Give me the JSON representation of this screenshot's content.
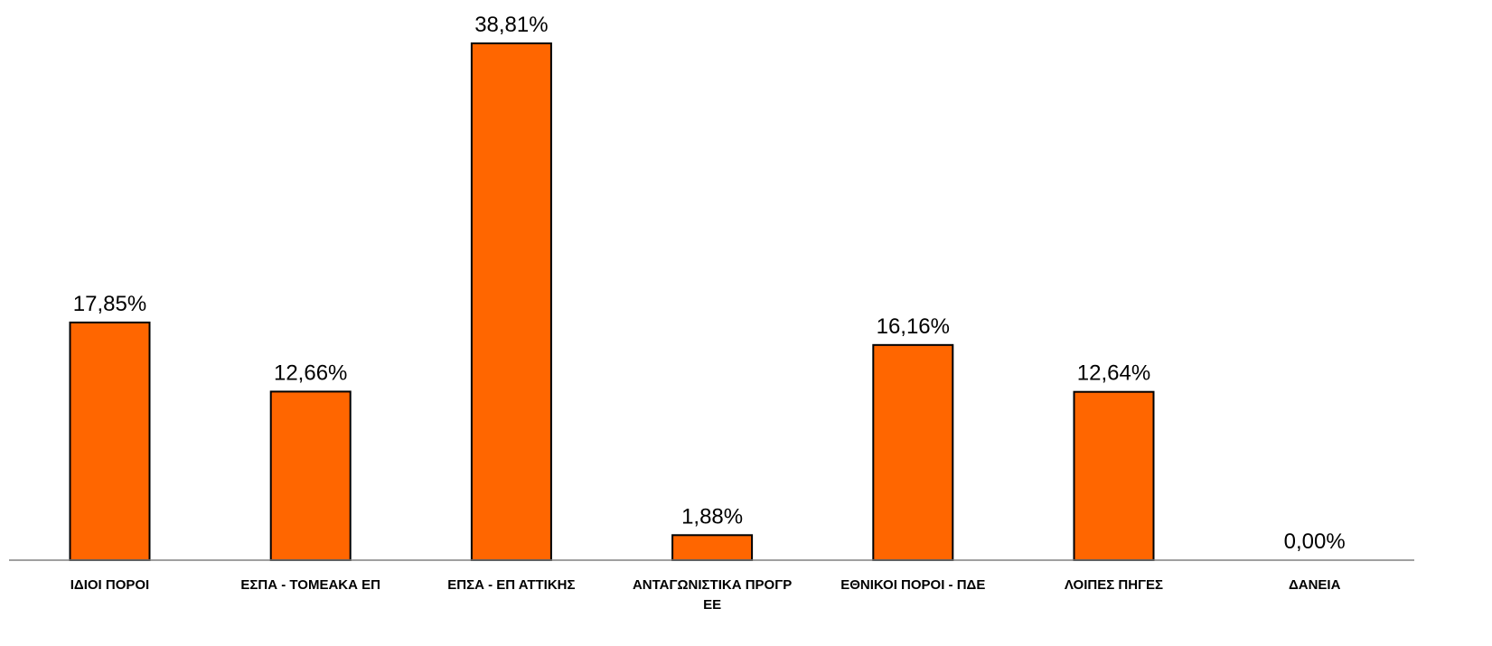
{
  "chart_data": {
    "type": "bar",
    "categories": [
      [
        "ΙΔΙΟΙ ΠΟΡΟΙ"
      ],
      [
        "ΕΣΠΑ - ΤΟΜΕΑΚΑ ΕΠ"
      ],
      [
        "ΕΠΣΑ - ΕΠ ΑΤΤΙΚΗΣ"
      ],
      [
        "ΑΝΤΑΓΩΝΙΣΤΙΚΑ ΠΡΟΓΡ",
        "ΕΕ"
      ],
      [
        "ΕΘΝΙΚΟΙ ΠΟΡΟΙ - ΠΔΕ"
      ],
      [
        "ΛΟΙΠΕΣ ΠΗΓΕΣ"
      ],
      [
        "ΔΑΝΕΙΑ"
      ]
    ],
    "values": [
      17.85,
      12.66,
      38.81,
      1.88,
      16.16,
      12.64,
      0.0
    ],
    "data_labels": [
      "17,85%",
      "12,66%",
      "38,81%",
      "1,88%",
      "16,16%",
      "12,64%",
      "0,00%"
    ],
    "title": "",
    "xlabel": "",
    "ylabel": "",
    "ylim": [
      0,
      38.81
    ],
    "grid": false,
    "legend": "none",
    "bar_color": "#FF6600",
    "bar_edge_color": "#000000",
    "axis_color": "#808080"
  }
}
